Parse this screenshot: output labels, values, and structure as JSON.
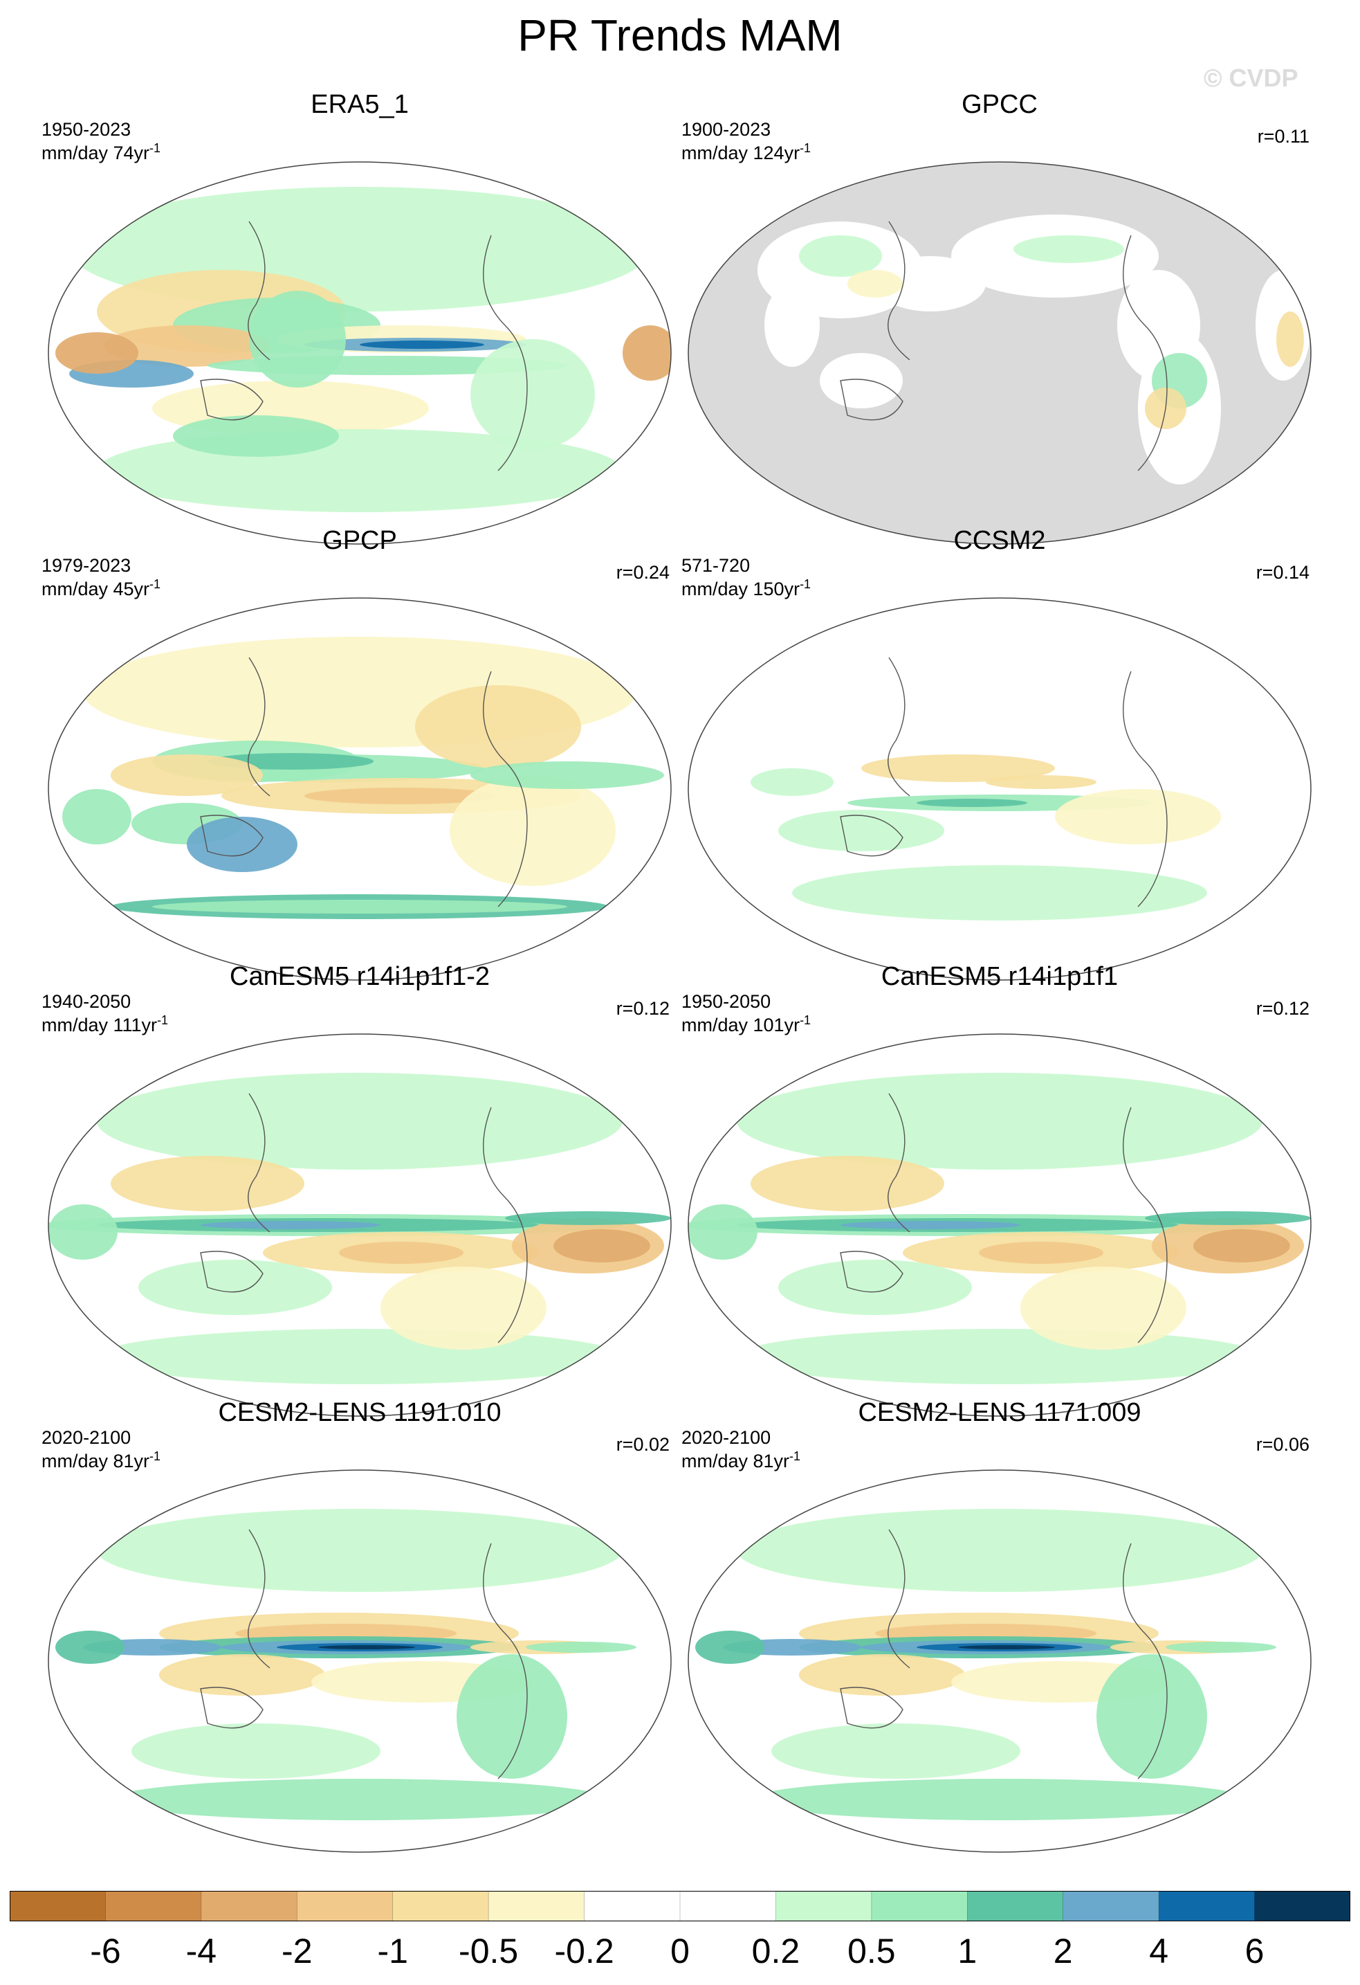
{
  "title": "PR Trends MAM",
  "watermark": "© CVDP",
  "colors": {
    "neg6": "#b9722c",
    "neg4": "#cf8c48",
    "neg2": "#e2ab6e",
    "neg1": "#f1c98a",
    "neg05": "#f6df9f",
    "neg02": "#fcf5c8",
    "white": "#ffffff",
    "pos02": "#c8f9cf",
    "pos05": "#9deabb",
    "pos1": "#5cc3a3",
    "pos2": "#6aa9cc",
    "pos4": "#0e6aa9",
    "pos6": "#06365a",
    "land_missing": "#dadada"
  },
  "panels": [
    {
      "title": "ERA5_1",
      "years": "1950-2023",
      "units": "mm/day 74yr",
      "sup": "-1",
      "r": "",
      "pattern": "era5"
    },
    {
      "title": "GPCC",
      "years": "1900-2023",
      "units": "mm/day 124yr",
      "sup": "-1",
      "r": "r=0.11",
      "pattern": "gpcc"
    },
    {
      "title": "GPCP",
      "years": "1979-2023",
      "units": "mm/day 45yr",
      "sup": "-1",
      "r": "r=0.24",
      "pattern": "gpcp"
    },
    {
      "title": "CCSM2",
      "years": "571-720",
      "units": "mm/day 150yr",
      "sup": "-1",
      "r": "r=0.14",
      "pattern": "ccsm2"
    },
    {
      "title": "CanESM5 r14i1p1f1-2",
      "years": "1940-2050",
      "units": "mm/day 111yr",
      "sup": "-1",
      "r": "r=0.12",
      "pattern": "canesm"
    },
    {
      "title": "CanESM5 r14i1p1f1",
      "years": "1950-2050",
      "units": "mm/day 101yr",
      "sup": "-1",
      "r": "r=0.12",
      "pattern": "canesm"
    },
    {
      "title": "CESM2-LENS 1191.010",
      "years": "2020-2100",
      "units": "mm/day 81yr",
      "sup": "-1",
      "r": "r=0.02",
      "pattern": "cesm"
    },
    {
      "title": "CESM2-LENS 1171.009",
      "years": "2020-2100",
      "units": "mm/day 81yr",
      "sup": "-1",
      "r": "r=0.06",
      "pattern": "cesm"
    }
  ],
  "colorbar": {
    "labels": [
      "-6",
      "-4",
      "-2",
      "-1",
      "-0.5",
      "-0.2",
      "0",
      "0.2",
      "0.5",
      "1",
      "2",
      "4",
      "6"
    ],
    "bins": [
      "neg6",
      "neg4",
      "neg2",
      "neg1",
      "neg05",
      "neg02",
      "white",
      "white",
      "pos02",
      "pos05",
      "pos1",
      "pos2",
      "pos4",
      "pos6"
    ]
  }
}
